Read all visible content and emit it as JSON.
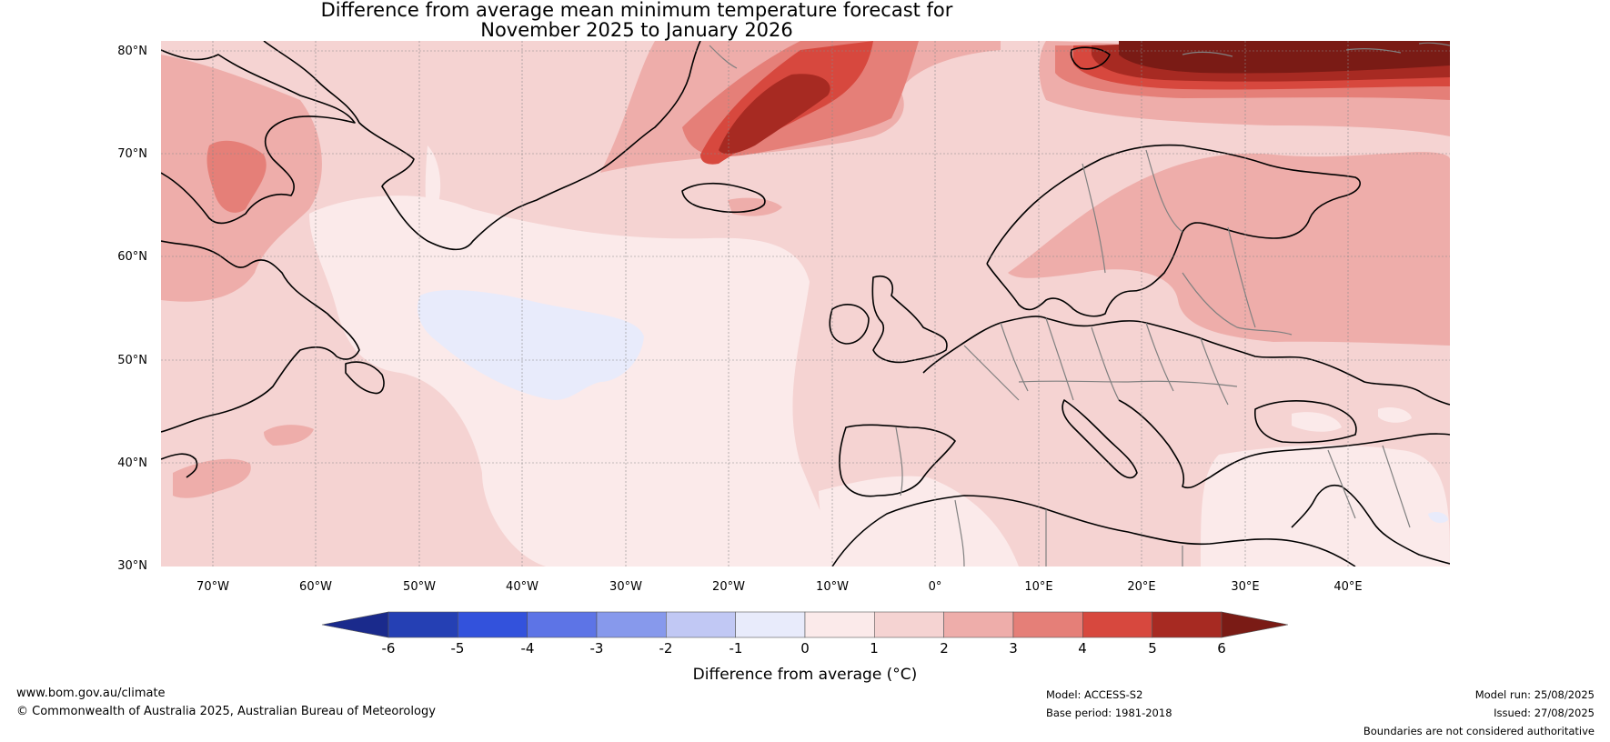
{
  "title": {
    "line1": "Difference from average mean minimum temperature forecast for",
    "line2": "November 2025 to January 2026"
  },
  "map": {
    "lat_labels": [
      "80°N",
      "70°N",
      "60°N",
      "50°N",
      "40°N",
      "30°N"
    ],
    "lon_labels": [
      "70°W",
      "60°W",
      "50°W",
      "40°W",
      "30°W",
      "20°W",
      "10°W",
      "0°",
      "10°E",
      "20°E",
      "30°E",
      "40°E"
    ]
  },
  "legend": {
    "levels": [
      "-6",
      "-5",
      "-4",
      "-3",
      "-2",
      "-1",
      "0",
      "1",
      "2",
      "3",
      "4",
      "5",
      "6"
    ],
    "colors": [
      "#1a2a8c",
      "#2540b4",
      "#3352dc",
      "#5d74e6",
      "#8799ec",
      "#c1c8f4",
      "#e8ebfb",
      "#fbeaea",
      "#f5d3d2",
      "#eeadaa",
      "#e57f78",
      "#d7483e",
      "#a72a22",
      "#7a1b15"
    ],
    "label": "Difference from average (°C)"
  },
  "footer": {
    "website": "www.bom.gov.au/climate",
    "copyright": "© Commonwealth of Australia 2025, Australian Bureau of Meteorology",
    "model": "Model: ACCESS-S2",
    "base_period": "Base period: 1981-2018",
    "model_run": "Model run: 25/08/2025",
    "issued": "Issued: 27/08/2025",
    "disclaimer": "Boundaries are not considered authoritative"
  }
}
